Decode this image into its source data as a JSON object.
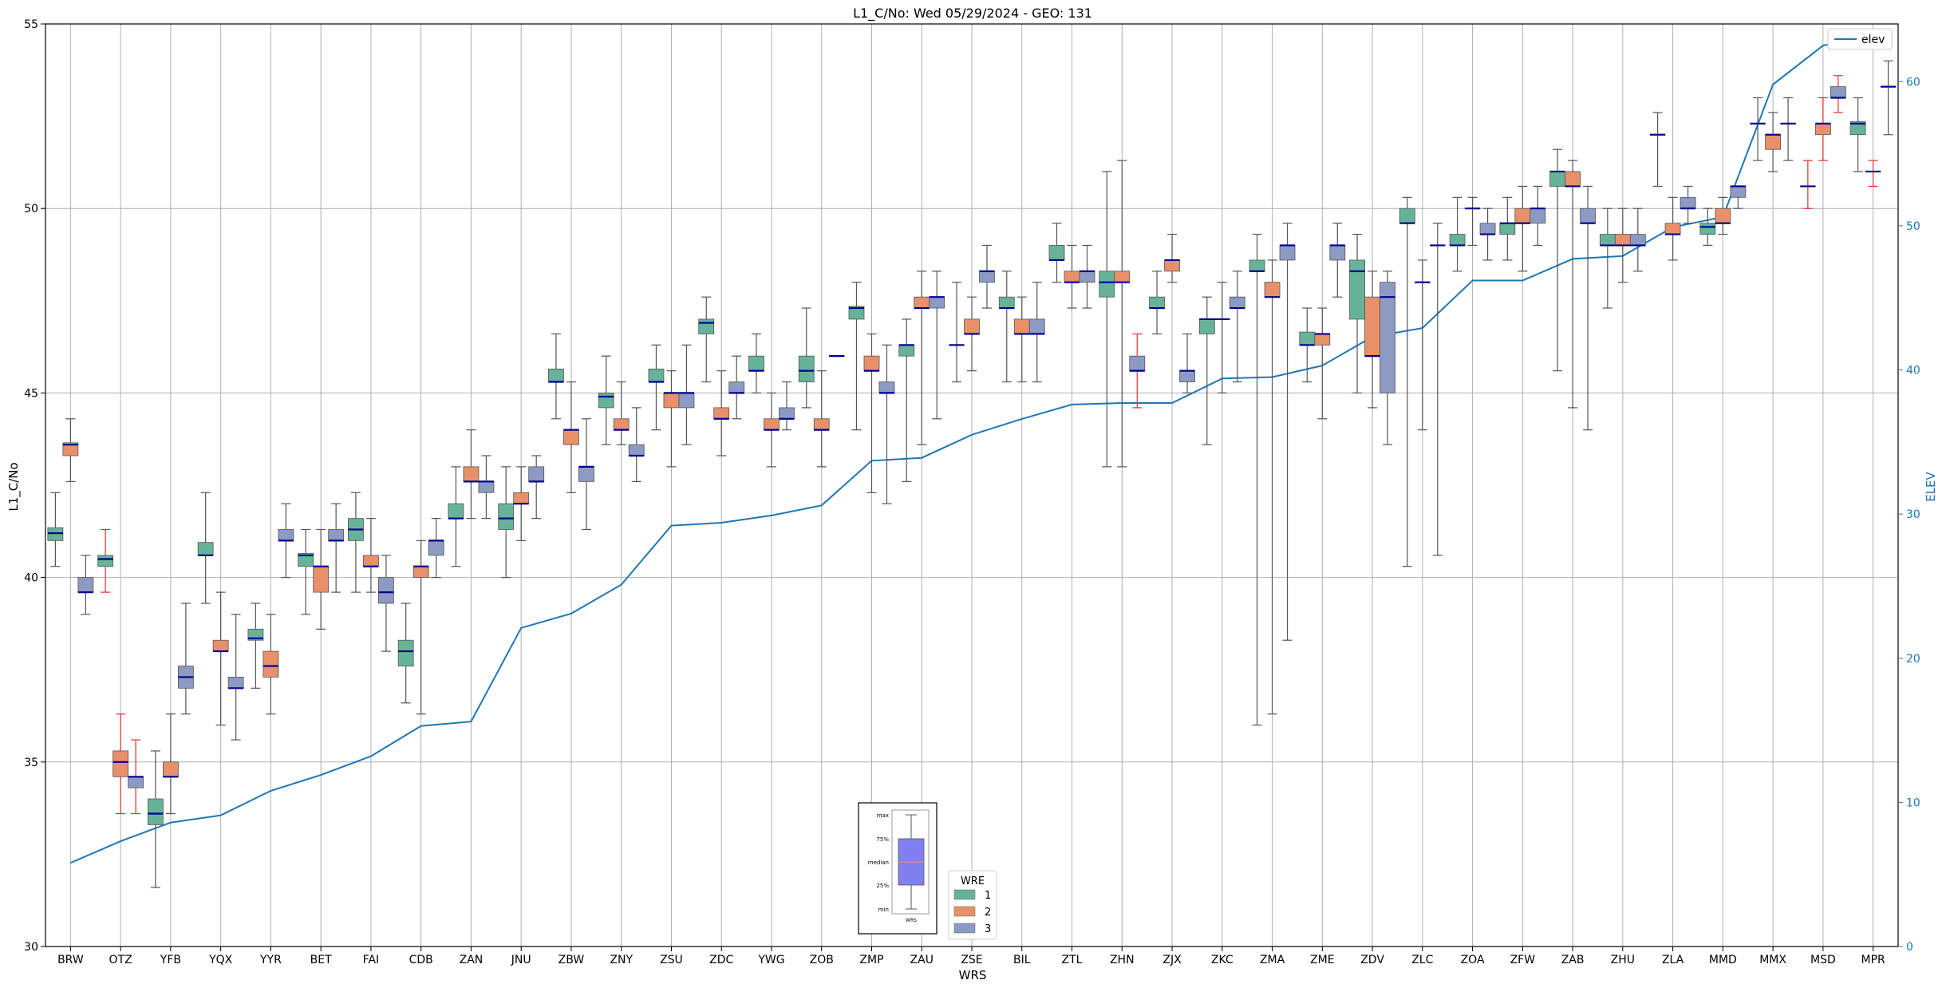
{
  "chart_data": {
    "type": "box",
    "title": "L1_C/No: Wed 05/29/2024 - GEO: 131",
    "xlabel": "WRS",
    "ylabel": "L1_C/No",
    "ylabel_right": "ELEV",
    "ylim": [
      30,
      55
    ],
    "ylim_right": [
      0,
      64
    ],
    "yticks": [
      30,
      35,
      40,
      45,
      50,
      55
    ],
    "yticks_right": [
      0,
      10,
      20,
      30,
      40,
      50,
      60
    ],
    "grid": true,
    "categories": [
      "BRW",
      "OTZ",
      "YFB",
      "YQX",
      "YYR",
      "BET",
      "FAI",
      "CDB",
      "ZAN",
      "JNU",
      "ZBW",
      "ZNY",
      "ZSU",
      "ZDC",
      "YWG",
      "ZOB",
      "ZMP",
      "ZAU",
      "ZSE",
      "BIL",
      "ZTL",
      "ZHN",
      "ZJX",
      "ZKC",
      "ZMA",
      "ZME",
      "ZDV",
      "ZLC",
      "ZOA",
      "ZFW",
      "ZAB",
      "ZHU",
      "ZLA",
      "MMD",
      "MMX",
      "MSD",
      "MPR"
    ],
    "colors": {
      "1": "#66b39a",
      "2": "#e8906a",
      "3": "#8c9ac4",
      "median": "#00008b",
      "whisker": "#555555",
      "whisker_alt": "#e03030",
      "elev": "#1f77b4",
      "grid": "#b0b0b0"
    },
    "legend_wre": {
      "title": "WRE",
      "entries": [
        "1",
        "2",
        "3"
      ],
      "placement": "bottom-center"
    },
    "legend_elev": {
      "entries": [
        "elev"
      ],
      "placement": "top-right"
    },
    "inset_legend": {
      "labels": [
        "max",
        "75%",
        "median",
        "25%",
        "min"
      ],
      "xlabel": "WRS"
    },
    "elev": [
      5.8,
      7.3,
      8.6,
      9.1,
      10.8,
      11.9,
      13.2,
      15.3,
      15.6,
      22.1,
      23.1,
      25.1,
      29.2,
      29.4,
      29.9,
      30.6,
      33.7,
      33.9,
      35.5,
      36.6,
      37.6,
      37.7,
      37.7,
      39.4,
      39.5,
      40.3,
      42.3,
      42.9,
      46.2,
      46.2,
      47.7,
      47.9,
      49.9,
      50.6,
      59.8,
      62.5,
      63.2
    ],
    "series": [
      {
        "name": "1",
        "boxes": [
          [
            0,
            40.3,
            41.0,
            41.2,
            41.35,
            42.3
          ],
          [
            1,
            39.6,
            40.3,
            40.5,
            40.6,
            41.3,
            "alt"
          ],
          [
            2,
            31.6,
            33.3,
            33.6,
            34.0,
            35.3
          ],
          [
            3,
            39.3,
            40.6,
            40.6,
            40.95,
            42.3
          ],
          [
            4,
            37.0,
            38.3,
            38.35,
            38.6,
            39.3
          ],
          [
            5,
            39.0,
            40.3,
            40.6,
            40.65,
            41.3
          ],
          [
            6,
            39.6,
            41.0,
            41.3,
            41.6,
            42.3
          ],
          [
            7,
            36.6,
            37.6,
            38.0,
            38.3,
            39.3
          ],
          [
            8,
            40.3,
            41.6,
            41.6,
            42.0,
            43.0
          ],
          [
            9,
            40.0,
            41.3,
            41.6,
            42.0,
            43.0
          ],
          [
            10,
            44.3,
            45.3,
            45.3,
            45.65,
            46.6
          ],
          [
            11,
            43.6,
            44.6,
            44.9,
            45.0,
            46.0
          ],
          [
            12,
            44.0,
            45.3,
            45.3,
            45.65,
            46.3
          ],
          [
            13,
            45.3,
            46.6,
            46.9,
            47.0,
            47.6
          ],
          [
            14,
            45.0,
            45.6,
            45.6,
            46.0,
            46.6
          ],
          [
            15,
            44.6,
            45.3,
            45.6,
            46.0,
            47.3
          ],
          [
            16,
            44.0,
            47.0,
            47.3,
            47.35,
            48.0
          ],
          [
            17,
            42.6,
            46.0,
            46.3,
            46.3,
            47.0
          ],
          [
            18,
            45.3,
            46.3,
            46.3,
            46.3,
            48.0
          ],
          [
            19,
            45.3,
            47.3,
            47.3,
            47.6,
            48.3
          ],
          [
            20,
            48.0,
            48.6,
            48.6,
            49.0,
            49.6
          ],
          [
            21,
            43.0,
            47.6,
            48.0,
            48.3,
            51.0
          ],
          [
            22,
            46.6,
            47.3,
            47.3,
            47.6,
            48.3
          ],
          [
            23,
            43.6,
            46.6,
            47.0,
            47.0,
            47.6
          ],
          [
            24,
            36.0,
            48.3,
            48.3,
            48.6,
            49.3
          ],
          [
            25,
            45.3,
            46.3,
            46.3,
            46.65,
            47.3
          ],
          [
            26,
            45.0,
            47.0,
            48.3,
            48.6,
            49.3
          ],
          [
            27,
            40.3,
            49.6,
            49.6,
            50.0,
            50.3
          ],
          [
            28,
            48.3,
            49.0,
            49.0,
            49.3,
            50.3
          ],
          [
            29,
            48.6,
            49.3,
            49.6,
            49.6,
            50.3
          ],
          [
            30,
            45.6,
            50.6,
            51.0,
            51.0,
            51.6
          ],
          [
            31,
            47.3,
            49.0,
            49.0,
            49.3,
            50.0
          ],
          [
            32,
            50.6,
            52.0,
            52.0,
            52.0,
            52.6
          ],
          [
            33,
            49.0,
            49.3,
            49.5,
            49.6,
            50.0
          ],
          [
            34,
            51.3,
            52.3,
            52.3,
            52.3,
            53.0
          ],
          [
            35,
            50.0,
            50.6,
            50.6,
            50.6,
            51.3,
            "alt"
          ],
          [
            36,
            51.0,
            52.0,
            52.3,
            52.35,
            53.0
          ]
        ]
      },
      {
        "name": "2",
        "boxes": [
          [
            0,
            42.6,
            43.3,
            43.6,
            43.65,
            44.3
          ],
          [
            1,
            33.6,
            34.6,
            35.0,
            35.3,
            36.3,
            "alt"
          ],
          [
            2,
            33.6,
            34.6,
            34.6,
            35.0,
            36.3
          ],
          [
            3,
            36.0,
            38.0,
            38.0,
            38.3,
            39.6
          ],
          [
            4,
            36.3,
            37.3,
            37.6,
            38.0,
            39.0
          ],
          [
            5,
            38.6,
            39.6,
            40.3,
            40.3,
            41.3
          ],
          [
            6,
            39.6,
            40.3,
            40.3,
            40.6,
            41.6
          ],
          [
            7,
            36.3,
            40.0,
            40.3,
            40.3,
            41.0
          ],
          [
            8,
            41.6,
            42.6,
            42.6,
            43.0,
            44.0
          ],
          [
            9,
            41.0,
            42.0,
            42.0,
            42.3,
            43.0
          ],
          [
            10,
            42.3,
            43.6,
            44.0,
            44.0,
            45.3
          ],
          [
            11,
            43.6,
            44.0,
            44.0,
            44.3,
            45.3
          ],
          [
            12,
            43.0,
            44.6,
            45.0,
            45.0,
            45.6
          ],
          [
            13,
            43.3,
            44.3,
            44.3,
            44.6,
            45.6
          ],
          [
            14,
            43.0,
            44.0,
            44.0,
            44.3,
            45.0
          ],
          [
            15,
            43.0,
            44.0,
            44.0,
            44.3,
            45.6
          ],
          [
            16,
            42.3,
            45.6,
            45.6,
            46.0,
            46.6
          ],
          [
            17,
            43.6,
            47.3,
            47.3,
            47.6,
            48.3
          ],
          [
            18,
            45.6,
            46.6,
            46.6,
            47.0,
            47.6
          ],
          [
            19,
            45.3,
            46.6,
            46.6,
            47.0,
            47.6
          ],
          [
            20,
            47.3,
            48.0,
            48.0,
            48.3,
            49.0
          ],
          [
            21,
            43.0,
            48.0,
            48.0,
            48.3,
            51.3
          ],
          [
            22,
            48.0,
            48.3,
            48.6,
            48.6,
            49.3
          ],
          [
            23,
            45.0,
            47.0,
            47.0,
            47.0,
            48.0
          ],
          [
            24,
            36.3,
            47.6,
            47.6,
            48.0,
            48.6
          ],
          [
            25,
            44.3,
            46.3,
            46.6,
            46.6,
            47.3
          ],
          [
            26,
            44.6,
            46.0,
            46.0,
            47.6,
            48.3
          ],
          [
            27,
            44.0,
            48.0,
            48.0,
            48.0,
            48.6
          ],
          [
            28,
            49.0,
            50.0,
            50.0,
            50.0,
            50.3
          ],
          [
            29,
            48.3,
            49.6,
            49.6,
            50.0,
            50.6
          ],
          [
            30,
            44.6,
            50.6,
            50.6,
            51.0,
            51.3
          ],
          [
            31,
            48.0,
            49.0,
            49.0,
            49.3,
            50.0
          ],
          [
            32,
            48.6,
            49.3,
            49.3,
            49.6,
            50.3
          ],
          [
            33,
            49.3,
            49.6,
            49.6,
            50.0,
            50.3
          ],
          [
            34,
            51.0,
            51.6,
            52.0,
            52.0,
            52.6
          ],
          [
            35,
            51.3,
            52.0,
            52.3,
            52.3,
            53.0,
            "alt"
          ],
          [
            36,
            50.6,
            51.0,
            51.0,
            51.0,
            51.3,
            "alt"
          ]
        ]
      },
      {
        "name": "3",
        "boxes": [
          [
            0,
            39.0,
            39.6,
            39.6,
            40.0,
            40.6
          ],
          [
            1,
            33.6,
            34.3,
            34.6,
            34.6,
            35.6,
            "alt"
          ],
          [
            2,
            36.3,
            37.0,
            37.3,
            37.6,
            39.3
          ],
          [
            3,
            35.6,
            37.0,
            37.0,
            37.3,
            39.0
          ],
          [
            4,
            40.0,
            41.0,
            41.0,
            41.3,
            42.0
          ],
          [
            5,
            39.6,
            41.0,
            41.0,
            41.3,
            42.0
          ],
          [
            6,
            38.0,
            39.3,
            39.6,
            40.0,
            40.6
          ],
          [
            7,
            40.0,
            40.6,
            41.0,
            41.0,
            41.6
          ],
          [
            8,
            41.6,
            42.3,
            42.6,
            42.6,
            43.3
          ],
          [
            9,
            41.6,
            42.6,
            42.6,
            43.0,
            43.3
          ],
          [
            10,
            41.3,
            42.6,
            43.0,
            43.0,
            44.3
          ],
          [
            11,
            42.6,
            43.3,
            43.3,
            43.6,
            44.6
          ],
          [
            12,
            43.6,
            44.6,
            45.0,
            45.0,
            46.3
          ],
          [
            13,
            44.3,
            45.0,
            45.0,
            45.3,
            46.0
          ],
          [
            14,
            44.0,
            44.3,
            44.3,
            44.6,
            45.3
          ],
          [
            15,
            46.0,
            46.0,
            46.0,
            46.0,
            46.0
          ],
          [
            16,
            42.0,
            45.0,
            45.0,
            45.3,
            46.3
          ],
          [
            17,
            44.3,
            47.3,
            47.6,
            47.6,
            48.3
          ],
          [
            18,
            47.3,
            48.0,
            48.3,
            48.3,
            49.0
          ],
          [
            19,
            45.3,
            46.6,
            46.6,
            47.0,
            48.0
          ],
          [
            20,
            47.3,
            48.0,
            48.3,
            48.3,
            49.0
          ],
          [
            21,
            44.6,
            45.6,
            45.6,
            46.0,
            46.6,
            "alt"
          ],
          [
            22,
            45.0,
            45.3,
            45.6,
            45.6,
            46.6
          ],
          [
            23,
            45.3,
            47.3,
            47.3,
            47.6,
            48.3
          ],
          [
            24,
            38.3,
            48.6,
            49.0,
            49.0,
            49.6
          ],
          [
            25,
            47.6,
            48.6,
            49.0,
            49.0,
            49.6
          ],
          [
            26,
            43.6,
            45.0,
            47.6,
            48.0,
            48.3
          ],
          [
            27,
            40.6,
            49.0,
            49.0,
            49.0,
            49.6
          ],
          [
            28,
            48.6,
            49.3,
            49.3,
            49.6,
            50.0
          ],
          [
            29,
            49.0,
            49.6,
            50.0,
            50.0,
            50.6
          ],
          [
            30,
            44.0,
            49.6,
            49.6,
            50.0,
            50.6
          ],
          [
            31,
            48.3,
            49.0,
            49.0,
            49.3,
            50.0
          ],
          [
            32,
            49.6,
            50.0,
            50.0,
            50.3,
            50.6
          ],
          [
            33,
            50.0,
            50.3,
            50.6,
            50.6,
            50.6
          ],
          [
            34,
            51.3,
            52.3,
            52.3,
            52.3,
            53.0
          ],
          [
            35,
            52.6,
            53.0,
            53.0,
            53.3,
            53.6,
            "alt"
          ],
          [
            36,
            52.0,
            53.3,
            53.3,
            53.3,
            54.0
          ]
        ]
      }
    ]
  }
}
